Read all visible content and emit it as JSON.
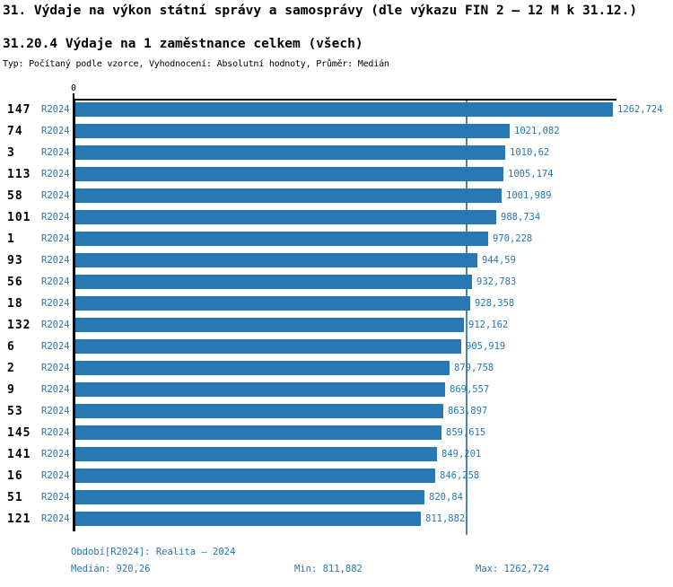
{
  "header": {
    "title": "31. Výdaje na výkon státní správy a samosprávy (dle výkazu FIN 2 – 12 M k 31.12.)",
    "subtitle": "31.20.4 Výdaje na 1 zaměstnance celkem (všech)",
    "type_line": "Typ: Počítaný podle vzorce, Vyhodnocení: Absolutní hodnoty, Průměr: Medián"
  },
  "chart_data": {
    "type": "bar",
    "orientation": "horizontal",
    "axis_zero_label": "0",
    "xlim": [
      0,
      1330
    ],
    "grid": false,
    "median_value": 920.26,
    "rows": [
      {
        "id": "147",
        "period": "R2024",
        "value": 1262.724,
        "value_label": "1262,724"
      },
      {
        "id": "74",
        "period": "R2024",
        "value": 1021.082,
        "value_label": "1021,082"
      },
      {
        "id": "3",
        "period": "R2024",
        "value": 1010.62,
        "value_label": "1010,62"
      },
      {
        "id": "113",
        "period": "R2024",
        "value": 1005.174,
        "value_label": "1005,174"
      },
      {
        "id": "58",
        "period": "R2024",
        "value": 1001.989,
        "value_label": "1001,989"
      },
      {
        "id": "101",
        "period": "R2024",
        "value": 988.734,
        "value_label": "988,734"
      },
      {
        "id": "1",
        "period": "R2024",
        "value": 970.228,
        "value_label": "970,228"
      },
      {
        "id": "93",
        "period": "R2024",
        "value": 944.59,
        "value_label": "944,59"
      },
      {
        "id": "56",
        "period": "R2024",
        "value": 932.783,
        "value_label": "932,783"
      },
      {
        "id": "18",
        "period": "R2024",
        "value": 928.358,
        "value_label": "928,358"
      },
      {
        "id": "132",
        "period": "R2024",
        "value": 912.162,
        "value_label": "912,162"
      },
      {
        "id": "6",
        "period": "R2024",
        "value": 905.919,
        "value_label": "905,919"
      },
      {
        "id": "2",
        "period": "R2024",
        "value": 879.758,
        "value_label": "879,758"
      },
      {
        "id": "9",
        "period": "R2024",
        "value": 869.557,
        "value_label": "869,557"
      },
      {
        "id": "53",
        "period": "R2024",
        "value": 863.897,
        "value_label": "863,897"
      },
      {
        "id": "145",
        "period": "R2024",
        "value": 859.615,
        "value_label": "859,615"
      },
      {
        "id": "141",
        "period": "R2024",
        "value": 849.201,
        "value_label": "849,201"
      },
      {
        "id": "16",
        "period": "R2024",
        "value": 846.258,
        "value_label": "846,258"
      },
      {
        "id": "51",
        "period": "R2024",
        "value": 820.84,
        "value_label": "820,84"
      },
      {
        "id": "121",
        "period": "R2024",
        "value": 811.882,
        "value_label": "811,882"
      }
    ]
  },
  "footer": {
    "period_line": "Období[R2024]: Realita – 2024",
    "median_label": "Medián: 920,26",
    "min_label": "Min: 811,882",
    "max_label": "Max: 1262,724"
  },
  "colors": {
    "bar": "#2878b5",
    "blue_text": "#2577b5",
    "axis": "#000000",
    "median_line": "#4a86b0"
  }
}
